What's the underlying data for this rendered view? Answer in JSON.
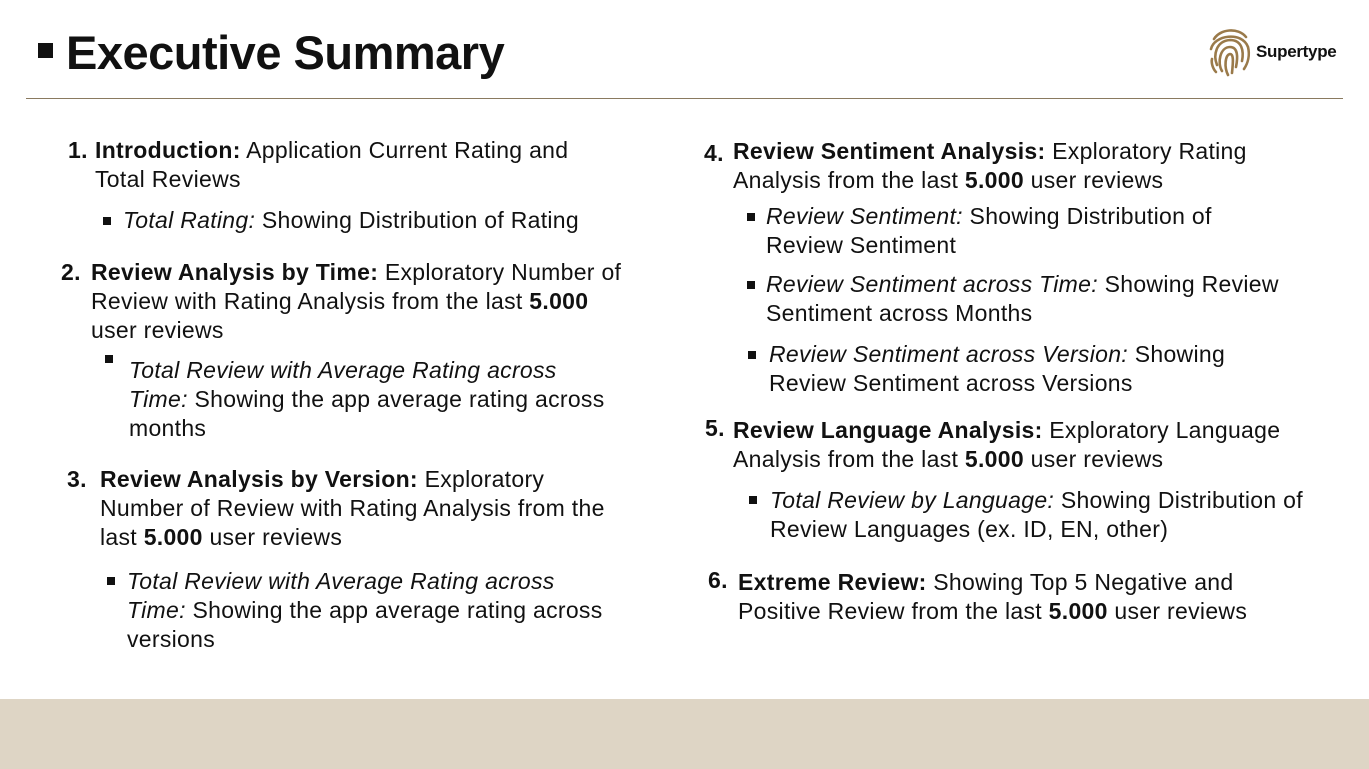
{
  "header": {
    "title": "Executive Summary",
    "logo_text": "Supertype"
  },
  "left": [
    {
      "number": "1.",
      "heading": "Introduction:",
      "text": " Application Current Rating and Total Reviews",
      "sub": {
        "label": "Total Rating:",
        "text": " Showing Distribution of Rating"
      }
    },
    {
      "number": "2.",
      "heading": "Review Analysis by Time:",
      "text": " Exploratory Number of Review with Rating Analysis from the last ",
      "bold_count": "5.000",
      "tail": " user reviews",
      "sub": {
        "label": "Total Review with Average Rating across Time:",
        "text": "  Showing the app average rating across months"
      }
    },
    {
      "number": "3.",
      "heading": "Review Analysis by Version:",
      "text": "  Exploratory Number of Review with Rating Analysis from the last ",
      "bold_count": "5.000",
      "tail": " user reviews",
      "sub": {
        "label": "Total Review with Average Rating across Time:",
        "text": "  Showing the app average rating across versions"
      }
    }
  ],
  "right": [
    {
      "number": "4.",
      "heading": "Review Sentiment Analysis:",
      "text": " Exploratory Rating Analysis from the last ",
      "bold_count": "5.000",
      "tail": " user reviews",
      "subs": [
        {
          "label": "Review Sentiment:",
          "text": " Showing Distribution of Review Sentiment"
        },
        {
          "label": "Review Sentiment across Time:",
          "text": " Showing Review Sentiment across Months"
        },
        {
          "label": "Review Sentiment across Version:",
          "text": " Showing Review Sentiment across Versions"
        }
      ]
    },
    {
      "number": "5.",
      "heading": "Review Language Analysis:",
      "text": " Exploratory Language Analysis from the last ",
      "bold_count": "5.000",
      "tail": " user reviews",
      "subs": [
        {
          "label": "Total Review by Language:",
          "text": " Showing Distribution of Review Languages (ex. ID, EN, other)"
        }
      ]
    },
    {
      "number": "6.",
      "heading": "Extreme Review:",
      "text": " Showing Top 5 Negative and Positive Review from the last ",
      "bold_count": "5.000",
      "tail": " user reviews"
    }
  ]
}
